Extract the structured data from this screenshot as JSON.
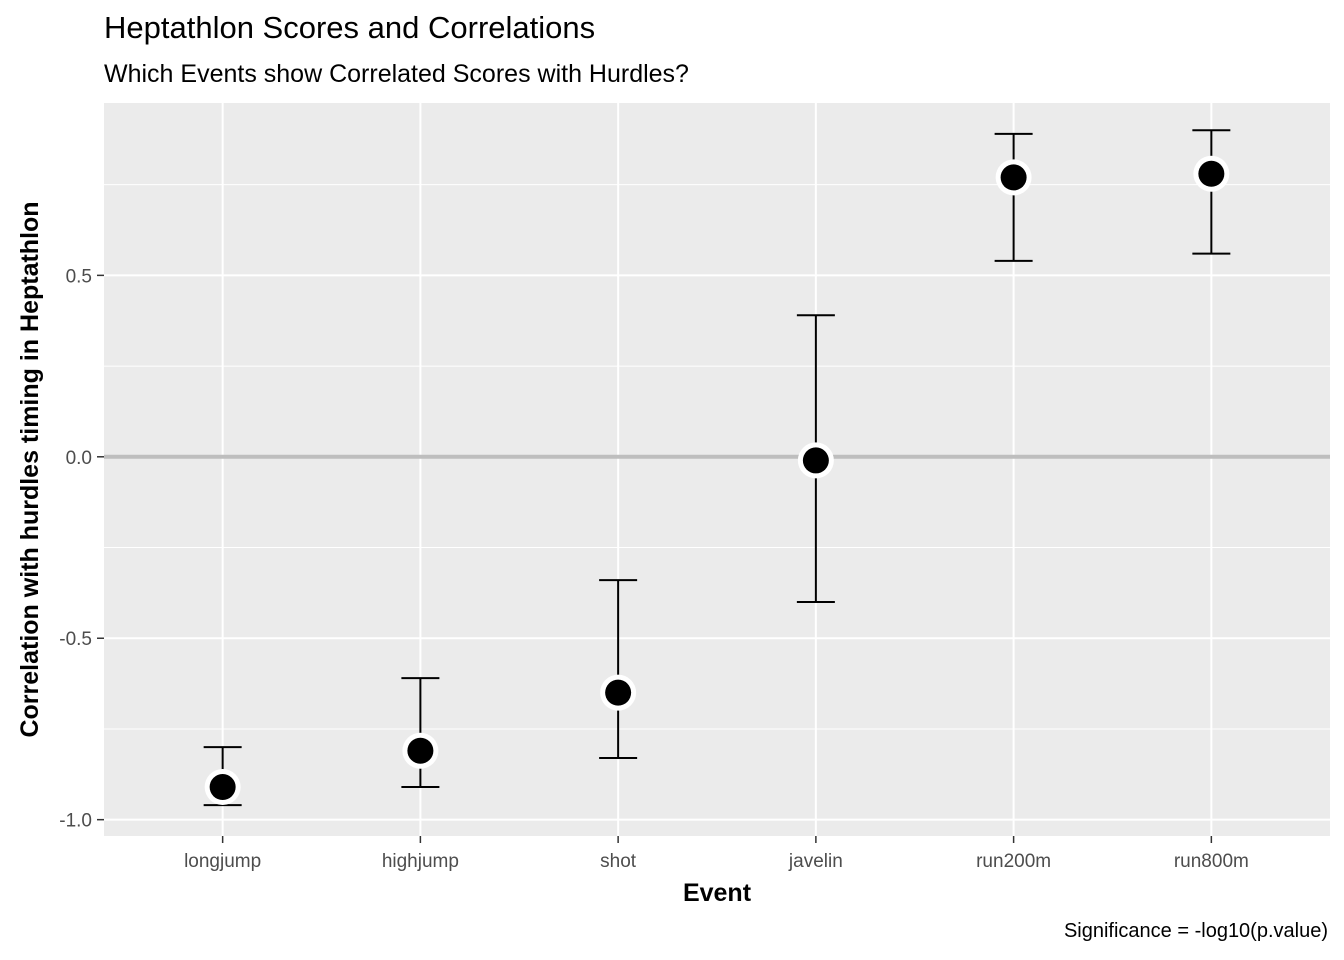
{
  "chart_data": {
    "type": "scatter",
    "title": "Heptathlon Scores and Correlations",
    "subtitle": "Which Events show Correlated Scores with Hurdles?",
    "xlabel": "Event",
    "ylabel": "Correlation with hurdles timing in Heptathlon",
    "caption": "Significance = -log10(p.value)",
    "categories": [
      "longjump",
      "highjump",
      "shot",
      "javelin",
      "run200m",
      "run800m"
    ],
    "estimate": [
      -0.91,
      -0.81,
      -0.65,
      -0.01,
      0.77,
      0.78
    ],
    "conf_low": [
      -0.96,
      -0.91,
      -0.83,
      -0.4,
      0.54,
      0.56
    ],
    "conf_high": [
      -0.8,
      -0.61,
      -0.34,
      0.39,
      0.89,
      0.9
    ],
    "y_ticks": [
      -1.0,
      -0.5,
      0.0,
      0.5
    ],
    "y_tick_labels": [
      "-1.0",
      "-0.5",
      "0.0",
      "0.5"
    ],
    "ylim": [
      -1.045,
      0.975
    ],
    "grid": true,
    "reference_line": 0,
    "colors": {
      "panel": "#ebebeb",
      "grid": "#ffffff",
      "reference": "#bebebe",
      "point": "#000000",
      "point_halo": "#ffffff"
    }
  }
}
